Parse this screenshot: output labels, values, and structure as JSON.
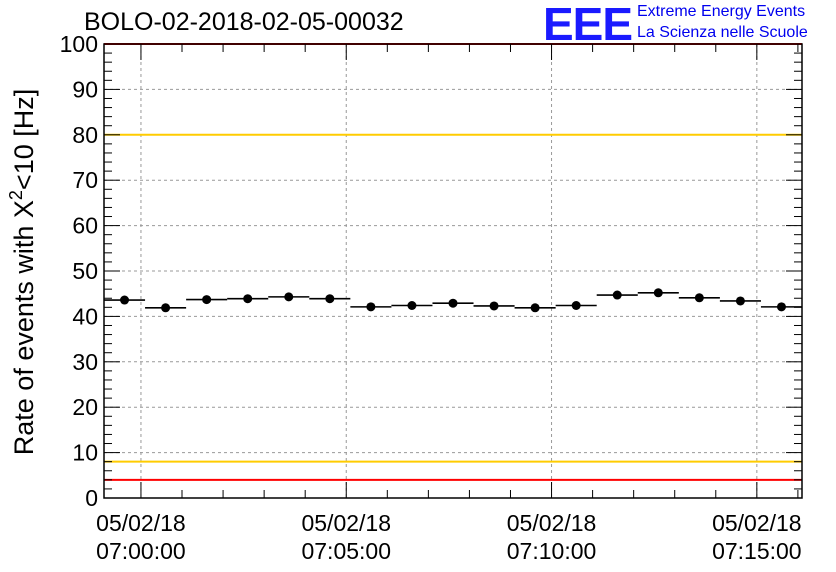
{
  "title": "BOLO-02-2018-02-05-00032",
  "logo": {
    "mark": "EEE",
    "line1": "Extreme Energy Events",
    "line2": "La Scienza nelle Scuole"
  },
  "chart_data": {
    "type": "scatter",
    "title": "BOLO-02-2018-02-05-00032",
    "ylabel_main": "Rate of events with X",
    "ylabel_sup": "2",
    "ylabel_tail": "<10 [Hz]",
    "ylim": [
      0,
      100
    ],
    "yticks": [
      0,
      10,
      20,
      30,
      40,
      50,
      60,
      70,
      80,
      90,
      100
    ],
    "xlim_minutes": [
      -0.9,
      16.1
    ],
    "xticks": [
      {
        "at_minutes": 0,
        "date": "05/02/18",
        "time": "07:00:00"
      },
      {
        "at_minutes": 5,
        "date": "05/02/18",
        "time": "07:05:00"
      },
      {
        "at_minutes": 10,
        "date": "05/02/18",
        "time": "07:10:00"
      },
      {
        "at_minutes": 15,
        "date": "05/02/18",
        "time": "07:15:00"
      }
    ],
    "bin_width_minutes": 1,
    "points": [
      {
        "t": -0.4,
        "rate": 43.6
      },
      {
        "t": 0.6,
        "rate": 41.9
      },
      {
        "t": 1.6,
        "rate": 43.7
      },
      {
        "t": 2.6,
        "rate": 43.9
      },
      {
        "t": 3.6,
        "rate": 44.3
      },
      {
        "t": 4.6,
        "rate": 43.9
      },
      {
        "t": 5.6,
        "rate": 42.1
      },
      {
        "t": 6.6,
        "rate": 42.4
      },
      {
        "t": 7.6,
        "rate": 42.9
      },
      {
        "t": 8.6,
        "rate": 42.3
      },
      {
        "t": 9.6,
        "rate": 41.9
      },
      {
        "t": 10.6,
        "rate": 42.4
      },
      {
        "t": 11.6,
        "rate": 44.7
      },
      {
        "t": 12.6,
        "rate": 45.2
      },
      {
        "t": 13.6,
        "rate": 44.1
      },
      {
        "t": 14.6,
        "rate": 43.4
      },
      {
        "t": 15.6,
        "rate": 42.1
      }
    ],
    "reference_lines": [
      {
        "y": 100,
        "color": "#ff0000"
      },
      {
        "y": 80,
        "color": "#ffcc00"
      },
      {
        "y": 8,
        "color": "#ffcc00"
      },
      {
        "y": 4,
        "color": "#ff0000"
      }
    ],
    "grid": true,
    "colors": {
      "marker": "#000000",
      "grid": "#999999"
    }
  }
}
